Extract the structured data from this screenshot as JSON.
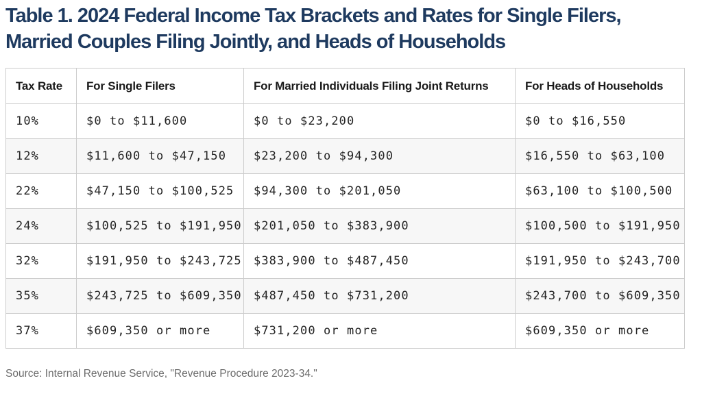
{
  "page": {
    "title_lines": [
      "Table 1. 2024 Federal Income Tax Brackets and Rates for Single Filers,",
      "Married Couples Filing Jointly, and Heads of Households"
    ],
    "source": "Source: Internal Revenue Service, \"Revenue Procedure 2023-34.\""
  },
  "colors": {
    "title_navy": "#1e3a5f",
    "grid_border": "#cccccc",
    "row_stripe": "#f7f7f7",
    "header_text": "#1a1a1a",
    "cell_text": "#242424",
    "source_text": "#6b6b6b"
  },
  "chart_data": {
    "type": "table",
    "title": "Table 1. 2024 Federal Income Tax Brackets and Rates for Single Filers, Married Couples Filing Jointly, and Heads of Households",
    "columns": [
      "Tax Rate",
      "For Single Filers",
      "For Married Individuals Filing Joint Returns",
      "For Heads of Households"
    ],
    "rows": [
      [
        "10%",
        "$0 to $11,600",
        "$0 to $23,200",
        "$0 to $16,550"
      ],
      [
        "12%",
        "$11,600 to $47,150",
        "$23,200 to $94,300",
        "$16,550 to $63,100"
      ],
      [
        "22%",
        "$47,150 to $100,525",
        "$94,300 to $201,050",
        "$63,100 to $100,500"
      ],
      [
        "24%",
        "$100,525 to $191,950",
        "$201,050 to $383,900",
        "$100,500 to $191,950"
      ],
      [
        "32%",
        "$191,950 to $243,725",
        "$383,900 to $487,450",
        "$191,950 to $243,700"
      ],
      [
        "35%",
        "$243,725 to $609,350",
        "$487,450 to $731,200",
        "$243,700 to $609,350"
      ],
      [
        "37%",
        "$609,350 or more",
        "$731,200 or more",
        "$609,350 or more"
      ]
    ],
    "source": "Source: Internal Revenue Service, \"Revenue Procedure 2023-34.\"",
    "layout_hints": {
      "striped_rows": "even data rows shaded",
      "grid": true
    }
  }
}
